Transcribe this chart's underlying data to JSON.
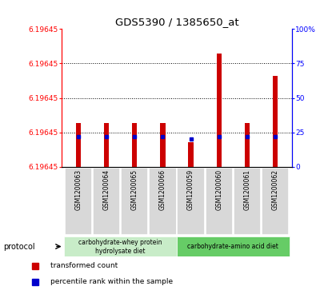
{
  "title": "GDS5390 / 1385650_at",
  "samples": [
    "GSM1200063",
    "GSM1200064",
    "GSM1200065",
    "GSM1200066",
    "GSM1200059",
    "GSM1200060",
    "GSM1200061",
    "GSM1200062"
  ],
  "bar_heights_pct": [
    32,
    32,
    32,
    32,
    18,
    82,
    32,
    66
  ],
  "percentile_ranks": [
    22,
    22,
    22,
    22,
    20,
    22,
    22,
    22
  ],
  "y_min": 6.19644,
  "y_max": 6.19646,
  "y_tick_labels": [
    "6.19645",
    "6.19645",
    "6.19645",
    "6.19645",
    "6.19645"
  ],
  "y2_ticks": [
    0,
    25,
    50,
    75,
    100
  ],
  "y2_tick_labels": [
    "0",
    "25",
    "50",
    "75",
    "100%"
  ],
  "protocol_groups": [
    {
      "label": "carbohydrate-whey protein\nhydrolysate diet",
      "start": 0,
      "end": 4,
      "color": "#c8ecc8"
    },
    {
      "label": "carbohydrate-amino acid diet",
      "start": 4,
      "end": 8,
      "color": "#66cc66"
    }
  ],
  "bar_color": "#cc0000",
  "percentile_color": "#0000cc",
  "plot_bg": "#ffffff",
  "sample_bg": "#d8d8d8",
  "bar_width": 0.18
}
